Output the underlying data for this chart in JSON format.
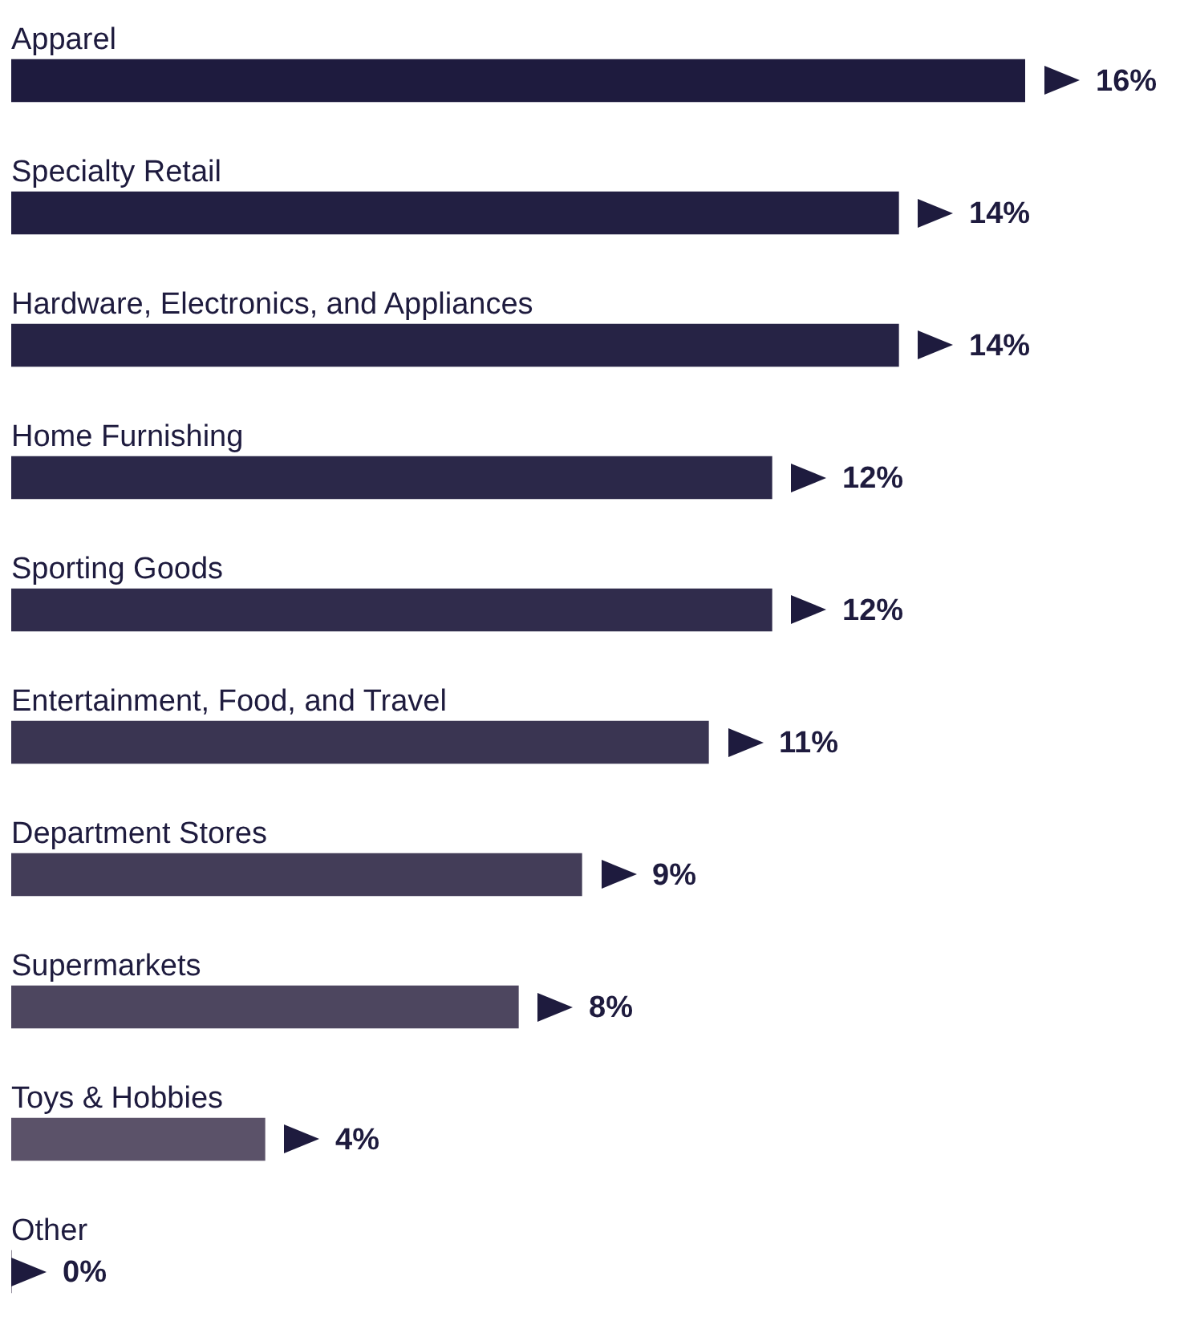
{
  "chart_data": {
    "type": "bar",
    "orientation": "horizontal",
    "categories": [
      "Apparel",
      "Specialty Retail",
      "Hardware, Electronics, and Appliances",
      "Home Furnishing",
      "Sporting Goods",
      "Entertainment, Food, and Travel",
      "Department Stores",
      "Supermarkets",
      "Toys & Hobbies",
      "Other"
    ],
    "values": [
      16,
      14,
      14,
      12,
      12,
      11,
      9,
      8,
      4,
      0
    ],
    "colors": [
      "#1e1b3e",
      "#221f42",
      "#262345",
      "#2b2849",
      "#302c4c",
      "#3a3552",
      "#433d58",
      "#4d465f",
      "#5b5269",
      "#5b5269"
    ],
    "value_labels": [
      "16%",
      "14%",
      "14%",
      "12%",
      "12%",
      "11%",
      "9%",
      "8%",
      "4%",
      "0%"
    ],
    "legend": false
  }
}
